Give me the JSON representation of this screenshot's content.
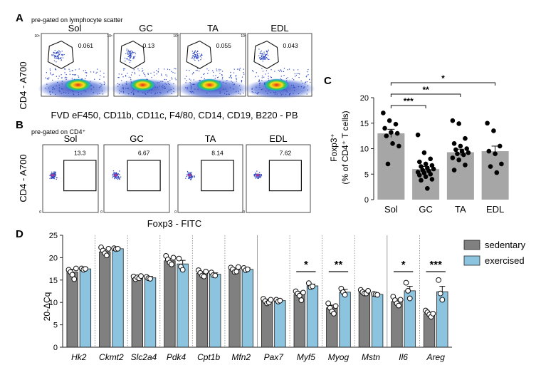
{
  "figure": {
    "panelA": {
      "letter": "A",
      "note": "pre-gated on lymphocyte scatter",
      "ylabel": "CD4 - A700",
      "xlabel": "FVD eF450, CD11b, CD11c, F4/80, CD14, CD19, B220 - PB",
      "plots": [
        {
          "title": "Sol",
          "value": "0.061"
        },
        {
          "title": "GC",
          "value": "0.13"
        },
        {
          "title": "TA",
          "value": "0.055"
        },
        {
          "title": "EDL",
          "value": "0.043"
        }
      ]
    },
    "panelB": {
      "letter": "B",
      "note": "pre-gated on CD4⁺",
      "ylabel": "CD4 - A700",
      "xlabel": "Foxp3 - FITC",
      "plots": [
        {
          "title": "Sol",
          "value": "13.3"
        },
        {
          "title": "GC",
          "value": "6.67"
        },
        {
          "title": "TA",
          "value": "8.14"
        },
        {
          "title": "EDL",
          "value": "7.62"
        }
      ]
    },
    "tick_labels": {
      "y_high": "10⁵",
      "y_mid": "10⁴",
      "y_low": "10³",
      "y_zero": "0",
      "x_mid": "10³",
      "x_high": "10⁴",
      "x_zero": "0"
    },
    "panelC": {
      "letter": "C",
      "ylabel_line1": "Foxp3⁺",
      "ylabel_line2": "(% of CD4⁺ T cells)"
    },
    "panelD": {
      "letter": "D",
      "ylabel": "20-ΔCq"
    }
  },
  "chart_data": [
    {
      "type": "bar",
      "panel": "C",
      "title": "",
      "xlabel": "",
      "ylabel": "Foxp3⁺ (% of CD4⁺ T cells)",
      "categories": [
        "Sol",
        "GC",
        "TA",
        "EDL"
      ],
      "values": [
        13.0,
        6.0,
        9.3,
        9.5
      ],
      "errors": [
        0.8,
        0.5,
        0.6,
        1.0
      ],
      "ylim": [
        0,
        20
      ],
      "yticks": [
        0,
        5,
        10,
        15,
        20
      ],
      "points": [
        [
          17.0,
          15.5,
          14.8,
          14.0,
          13.2,
          13.0,
          12.5,
          11.0,
          10.5,
          7.0
        ],
        [
          12.7,
          9.2,
          8.0,
          7.4,
          7.0,
          6.7,
          6.5,
          6.2,
          6.0,
          5.8,
          5.6,
          5.4,
          5.2,
          5.0,
          4.8,
          4.5,
          4.0,
          3.8,
          2.2
        ],
        [
          15.5,
          14.9,
          12.0,
          11.0,
          10.5,
          10.0,
          9.8,
          9.5,
          9.2,
          9.0,
          8.8,
          8.2,
          7.8,
          6.8,
          5.8
        ],
        [
          15.0,
          13.5,
          10.5,
          9.5,
          9.0,
          7.0,
          6.5,
          5.3
        ]
      ],
      "significance": [
        {
          "from": "Sol",
          "to": "GC",
          "label": "***"
        },
        {
          "from": "Sol",
          "to": "TA",
          "label": "**"
        },
        {
          "from": "Sol",
          "to": "EDL",
          "label": "*"
        }
      ]
    },
    {
      "type": "bar",
      "panel": "D",
      "title": "",
      "xlabel": "",
      "ylabel": "20-ΔCq",
      "categories": [
        "Hk2",
        "Ckmt2",
        "Slc2a4",
        "Pdk4",
        "Cpt1b",
        "Mfn2",
        "Pax7",
        "Myf5",
        "Myog",
        "Mstn",
        "Il6",
        "Areg"
      ],
      "ylim": [
        0,
        25
      ],
      "yticks": [
        0,
        5,
        10,
        15,
        20,
        25
      ],
      "series": [
        {
          "name": "sedentary",
          "color": "#808080",
          "values": [
            16.8,
            21.3,
            15.5,
            19.3,
            16.5,
            17.3,
            10.3,
            11.8,
            8.8,
            12.3,
            10.2,
            7.5
          ],
          "errors": [
            0.6,
            0.5,
            0.3,
            0.5,
            0.4,
            0.4,
            0.4,
            0.6,
            0.6,
            0.3,
            0.6,
            0.3
          ],
          "points": [
            [
              17.3,
              16.8,
              16.2,
              15.2,
              17.6
            ],
            [
              22.3,
              21.6,
              21.0,
              20.5,
              22.0
            ],
            [
              15.8,
              15.2,
              15.6,
              15.4,
              15.9
            ],
            [
              20.4,
              19.6,
              18.9,
              18.5,
              20.0
            ],
            [
              17.2,
              16.6,
              16.0,
              15.8,
              16.9
            ],
            [
              17.8,
              17.4,
              16.8,
              16.9,
              17.9
            ],
            [
              10.8,
              10.3,
              9.8,
              10.0,
              10.6
            ],
            [
              12.5,
              12.0,
              11.5,
              10.5,
              12.2
            ],
            [
              9.8,
              8.8,
              8.0,
              7.5,
              9.2
            ],
            [
              12.8,
              12.3,
              12.0,
              12.0,
              12.6
            ],
            [
              11.3,
              10.5,
              9.8,
              9.3,
              10.6
            ],
            [
              8.2,
              7.8,
              7.3,
              6.8,
              7.5
            ]
          ]
        },
        {
          "name": "exercised",
          "color": "#8cc4df",
          "values": [
            17.5,
            22.0,
            15.5,
            18.6,
            16.3,
            17.4,
            10.4,
            13.7,
            12.3,
            11.8,
            12.6,
            12.4
          ],
          "errors": [
            0.3,
            0.2,
            0.3,
            0.8,
            0.3,
            0.3,
            0.3,
            0.4,
            0.6,
            0.2,
            1.0,
            1.2
          ],
          "points": [
            [
              17.6,
              17.3,
              17.5
            ],
            [
              22.1,
              21.9,
              22.0
            ],
            [
              15.7,
              15.4,
              15.3
            ],
            [
              19.8,
              18.0,
              17.3
            ],
            [
              16.7,
              16.1,
              16.0
            ],
            [
              17.7,
              17.2,
              17.4
            ],
            [
              10.6,
              10.2,
              10.4
            ],
            [
              14.3,
              13.4,
              13.6
            ],
            [
              13.1,
              12.3,
              11.7
            ],
            [
              11.9,
              11.8,
              11.7
            ],
            [
              14.4,
              12.6,
              10.9
            ],
            [
              15.0,
              12.0,
              10.6
            ]
          ]
        }
      ],
      "significance": [
        {
          "category": "Myf5",
          "label": "*"
        },
        {
          "category": "Myog",
          "label": "**"
        },
        {
          "category": "Il6",
          "label": "*"
        },
        {
          "category": "Areg",
          "label": "***"
        }
      ],
      "legend": {
        "placement": "top-right"
      }
    }
  ]
}
